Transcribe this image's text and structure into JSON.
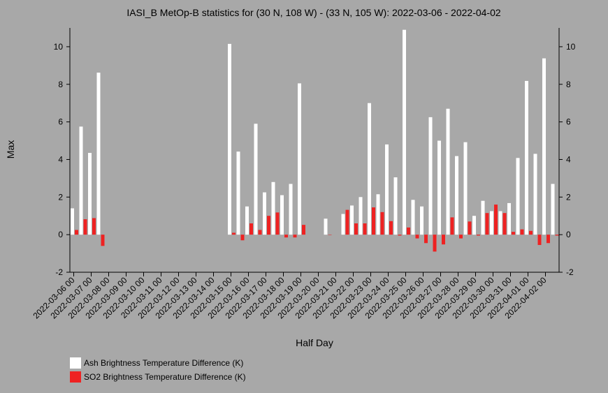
{
  "chart_data": {
    "type": "bar",
    "title": "IASI_B MetOp-B statistics for (30 N, 108 W) - (33 N, 105 W): 2022-03-06 - 2022-04-02",
    "xlabel": "Half Day",
    "ylabel": "Max",
    "ylim": [
      -2,
      11
    ],
    "yticks": [
      -2,
      0,
      2,
      4,
      6,
      8,
      10
    ],
    "grid": false,
    "legend_position": "bottom-left",
    "x_tick_labels": [
      "2022-03-06 00",
      "2022-03-07 00",
      "2022-03-08 00",
      "2022-03-09 00",
      "2022-03-10 00",
      "2022-03-11 00",
      "2022-03-12 00",
      "2022-03-13 00",
      "2022-03-14 00",
      "2022-03-15 00",
      "2022-03-16 00",
      "2022-03-17 00",
      "2022-03-18 00",
      "2022-03-19 00",
      "2022-03-20 00",
      "2022-03-21 00",
      "2022-03-22 00",
      "2022-03-23 00",
      "2022-03-24 00",
      "2022-03-25 00",
      "2022-03-26 00",
      "2022-03-27 00",
      "2022-03-28 00",
      "2022-03-29 00",
      "2022-03-30 00",
      "2022-03-31 00",
      "2022-04-01 00",
      "2022-04-02 00"
    ],
    "series": [
      {
        "name": "Ash Brightness Temperature Difference (K)",
        "color": "#ffffff",
        "values": [
          1.4,
          5.75,
          4.35,
          8.62,
          null,
          null,
          null,
          null,
          null,
          null,
          null,
          null,
          null,
          null,
          null,
          null,
          null,
          null,
          10.15,
          4.42,
          1.5,
          5.9,
          2.25,
          2.8,
          2.1,
          2.7,
          8.05,
          null,
          null,
          0.85,
          null,
          1.1,
          1.55,
          2.0,
          7.0,
          2.15,
          4.8,
          3.05,
          10.9,
          1.85,
          1.5,
          6.25,
          5.0,
          6.7,
          4.18,
          4.92,
          1.0,
          1.8,
          1.25,
          1.25,
          1.68,
          4.08,
          8.18,
          4.3,
          9.38,
          2.7
        ]
      },
      {
        "name": "SO2 Brightness Temperature Difference (K)",
        "color": "#ee2222",
        "values": [
          0.25,
          0.82,
          0.88,
          -0.6,
          null,
          null,
          null,
          null,
          null,
          null,
          null,
          null,
          null,
          null,
          null,
          null,
          null,
          null,
          0.1,
          -0.3,
          0.6,
          0.25,
          1.0,
          1.18,
          -0.15,
          -0.15,
          0.52,
          null,
          null,
          0.0,
          null,
          1.32,
          0.6,
          0.6,
          1.45,
          1.2,
          0.72,
          -0.05,
          0.38,
          -0.2,
          -0.45,
          -0.9,
          -0.52,
          0.92,
          -0.2,
          0.7,
          -0.05,
          1.15,
          1.6,
          1.15,
          0.15,
          0.28,
          0.2,
          -0.55,
          -0.45,
          -0.05
        ]
      }
    ]
  }
}
